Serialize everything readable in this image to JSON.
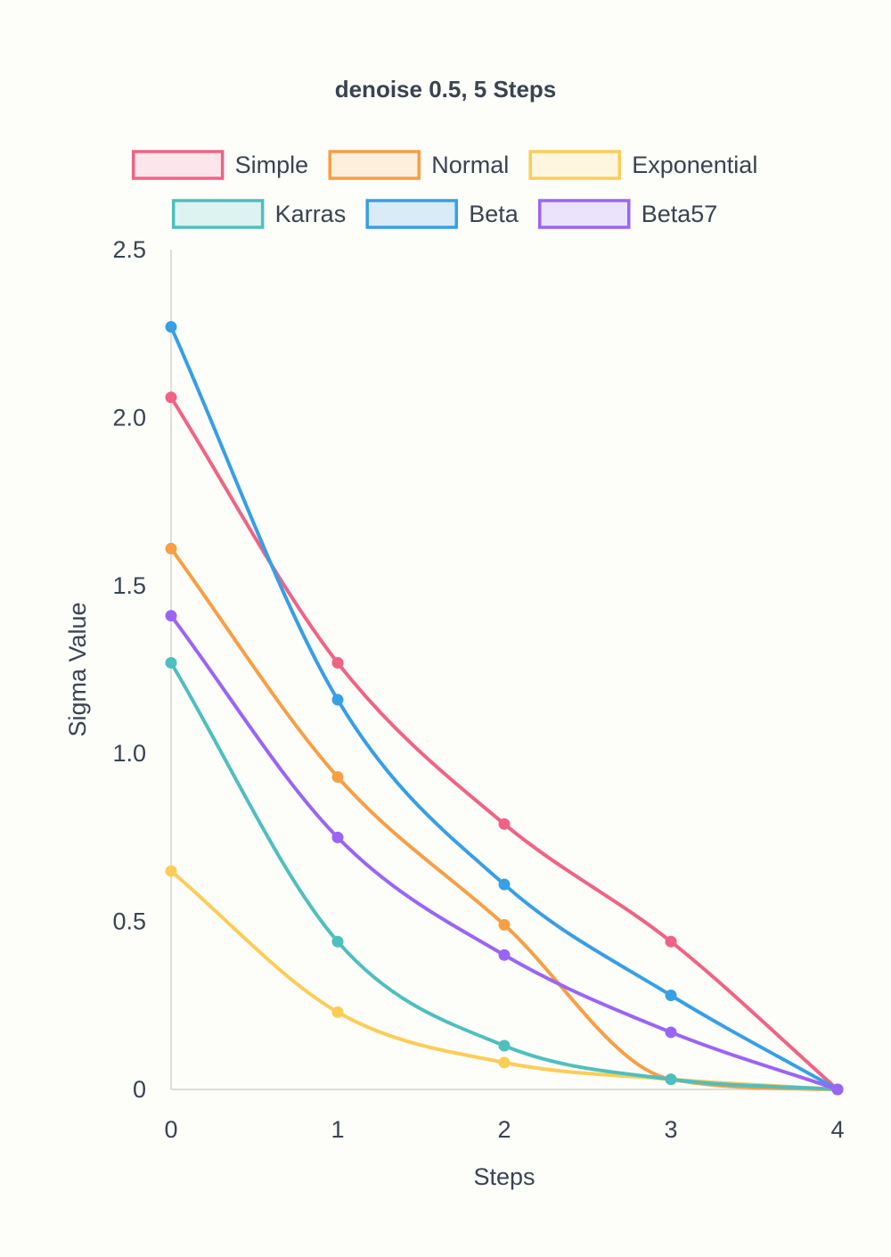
{
  "chart_data": {
    "type": "line",
    "title": "denoise 0.5, 5 Steps",
    "xlabel": "Steps",
    "ylabel": "Sigma Value",
    "x": [
      0,
      1,
      2,
      3,
      4
    ],
    "x_ticks": [
      "0",
      "1",
      "2",
      "3",
      "4"
    ],
    "y_ticks": [
      "0",
      "0.5",
      "1.0",
      "1.5",
      "2.0",
      "2.5"
    ],
    "ylim": [
      0,
      2.5
    ],
    "xlim": [
      0,
      4
    ],
    "grid": false,
    "legend_position": "top",
    "series": [
      {
        "name": "Simple",
        "color": "#f06384",
        "fill": "#fde6eb",
        "values": [
          2.06,
          1.27,
          0.79,
          0.44,
          0
        ]
      },
      {
        "name": "Normal",
        "color": "#f79f44",
        "fill": "#feefdd",
        "values": [
          1.61,
          0.93,
          0.49,
          0.03,
          0
        ]
      },
      {
        "name": "Exponential",
        "color": "#fccd56",
        "fill": "#fef6df",
        "values": [
          0.65,
          0.23,
          0.08,
          0.03,
          0
        ]
      },
      {
        "name": "Karras",
        "color": "#4ebfbf",
        "fill": "#dcf3f1",
        "values": [
          1.27,
          0.44,
          0.13,
          0.03,
          0
        ]
      },
      {
        "name": "Beta",
        "color": "#379fe6",
        "fill": "#d8ebf7",
        "values": [
          2.27,
          1.16,
          0.61,
          0.28,
          0
        ]
      },
      {
        "name": "Beta57",
        "color": "#9a65f5",
        "fill": "#ebe2fc",
        "values": [
          1.41,
          0.75,
          0.4,
          0.17,
          0
        ]
      }
    ]
  }
}
